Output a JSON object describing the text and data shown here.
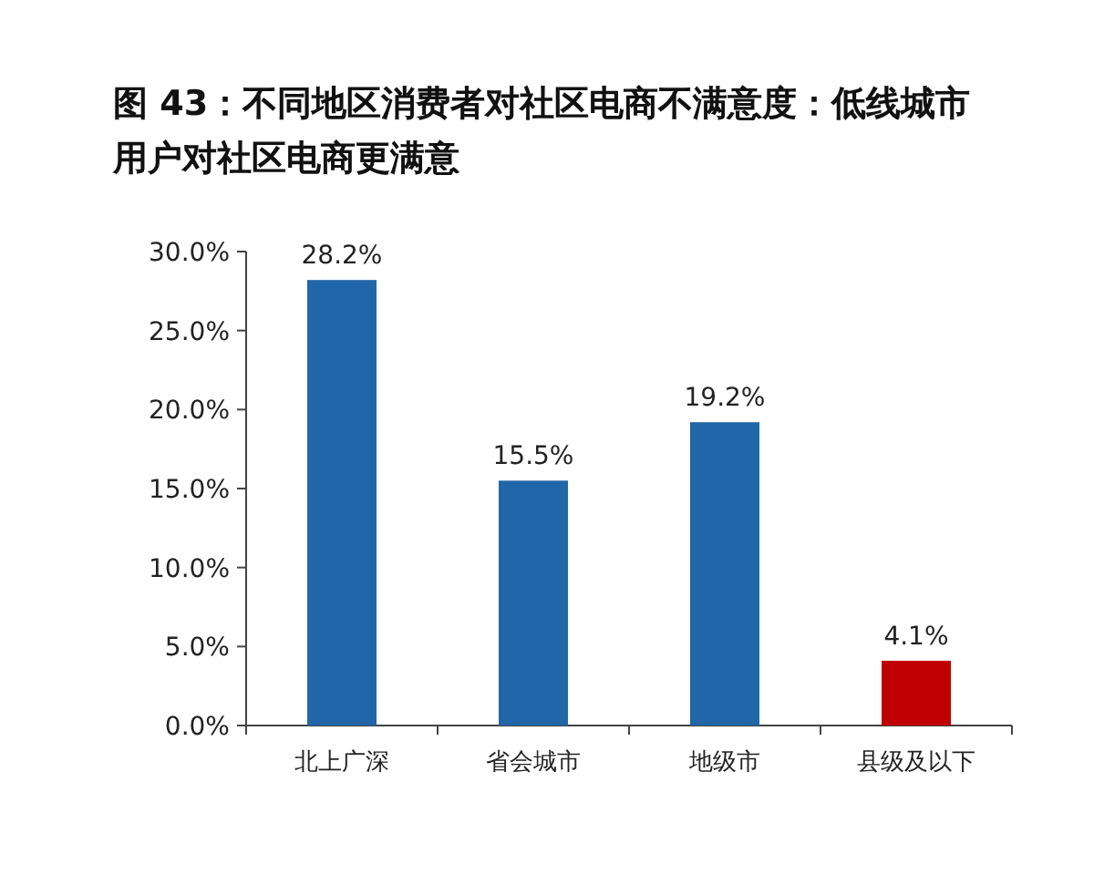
{
  "chart_data": {
    "type": "bar",
    "title": "图 43：不同地区消费者对社区电商不满意度：低线城市用户对社区电商更满意",
    "categories": [
      "北上广深",
      "省会城市",
      "地级市",
      "县级及以下"
    ],
    "values": [
      28.2,
      15.5,
      19.2,
      4.1
    ],
    "colors": [
      "#2166a8",
      "#2166a8",
      "#2166a8",
      "#c00000"
    ],
    "value_labels": [
      "28.2%",
      "15.5%",
      "19.2%",
      "4.1%"
    ],
    "ylim": [
      0,
      30
    ],
    "yticks": [
      {
        "value": 0,
        "label": "0.0%"
      },
      {
        "value": 5,
        "label": "5.0%"
      },
      {
        "value": 10,
        "label": "10.0%"
      },
      {
        "value": 15,
        "label": "15.0%"
      },
      {
        "value": 20,
        "label": "20.0%"
      },
      {
        "value": 25,
        "label": "25.0%"
      },
      {
        "value": 30,
        "label": "30.0%"
      }
    ]
  }
}
